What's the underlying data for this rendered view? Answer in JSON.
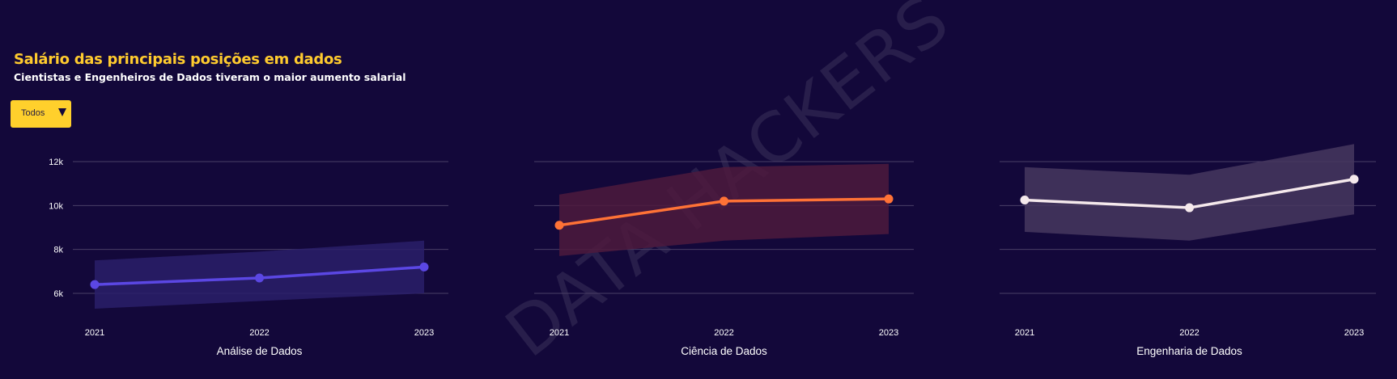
{
  "header": {
    "title": "Salário das principais posições em dados",
    "subtitle": "Cientistas e Engenheiros de Dados tiveram o maior aumento salarial"
  },
  "filter": {
    "selected": "Todos"
  },
  "watermark": "DATA HACKERS",
  "chart_data": [
    {
      "type": "line",
      "xlabel": "Análise de Dados",
      "x": [
        "2021",
        "2022",
        "2023"
      ],
      "series": [
        {
          "values": [
            6400,
            6700,
            7200
          ],
          "band_low": [
            5300,
            5650,
            6000
          ],
          "band_high": [
            7500,
            7900,
            8400
          ],
          "color": "#5b47e3",
          "band_color": "#2a1e6a"
        }
      ],
      "yticks": [
        "6k",
        "8k",
        "10k",
        "12k"
      ],
      "ylim": [
        4800,
        13000
      ],
      "grid": true
    },
    {
      "type": "line",
      "xlabel": "Ciência de Dados",
      "x": [
        "2021",
        "2022",
        "2023"
      ],
      "series": [
        {
          "values": [
            9100,
            10200,
            10300
          ],
          "band_low": [
            7700,
            8400,
            8700
          ],
          "band_high": [
            10500,
            11750,
            11900
          ],
          "color": "#ff7236",
          "band_color": "#4d1a3d"
        }
      ],
      "ylim": [
        4800,
        13000
      ],
      "grid": true
    },
    {
      "type": "line",
      "xlabel": "Engenharia de Dados",
      "x": [
        "2021",
        "2022",
        "2023"
      ],
      "series": [
        {
          "values": [
            10250,
            9900,
            11200
          ],
          "band_low": [
            8800,
            8400,
            9600
          ],
          "band_high": [
            11750,
            11400,
            12800
          ],
          "color": "#f5e9ec",
          "band_color": "#47375f"
        }
      ],
      "ylim": [
        4800,
        13000
      ],
      "grid": true
    }
  ]
}
